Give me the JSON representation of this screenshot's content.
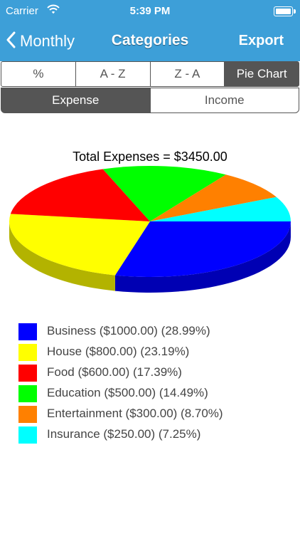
{
  "status_bar": {
    "carrier": "Carrier",
    "time": "5:39 PM"
  },
  "nav": {
    "back_label": "Monthly",
    "title": "Categories",
    "export_label": "Export"
  },
  "sort_tabs": [
    {
      "label": "%",
      "selected": false
    },
    {
      "label": "A - Z",
      "selected": false
    },
    {
      "label": "Z - A",
      "selected": false
    },
    {
      "label": "Pie Chart",
      "selected": true
    }
  ],
  "type_tabs": [
    {
      "label": "Expense",
      "selected": true
    },
    {
      "label": "Income",
      "selected": false
    }
  ],
  "chart_data": {
    "type": "pie",
    "title": "Total Expenses = $3450.00",
    "slices": [
      {
        "name": "Business",
        "value": 1000.0,
        "percent": 28.99,
        "color": "#0000ff",
        "legend": "Business ($1000.00) (28.99%)"
      },
      {
        "name": "House",
        "value": 800.0,
        "percent": 23.19,
        "color": "#ffff00",
        "legend": "House ($800.00) (23.19%)"
      },
      {
        "name": "Food",
        "value": 600.0,
        "percent": 17.39,
        "color": "#ff0000",
        "legend": "Food ($600.00) (17.39%)"
      },
      {
        "name": "Education",
        "value": 500.0,
        "percent": 14.49,
        "color": "#00ff00",
        "legend": "Education ($500.00) (14.49%)"
      },
      {
        "name": "Entertainment",
        "value": 300.0,
        "percent": 8.7,
        "color": "#ff8000",
        "legend": "Entertainment ($300.00) (8.70%)"
      },
      {
        "name": "Insurance",
        "value": 250.0,
        "percent": 7.25,
        "color": "#00ffff",
        "legend": "Insurance ($250.00) (7.25%)"
      }
    ],
    "legend_position": "bottom-left"
  },
  "colors": {
    "header": "#3d9fd8",
    "segment_active": "#555555"
  }
}
